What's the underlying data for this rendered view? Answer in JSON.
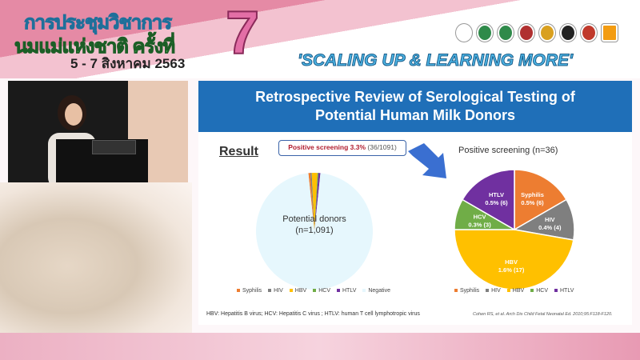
{
  "header": {
    "line1": "การประชุมวิชาการ",
    "line2": "นมแม่แห่งชาติ ครั้งที่",
    "number": "7",
    "dates": "5 - 7 สิงหาคม 2563",
    "slogan": "'SCALING UP & LEARNING MORE'"
  },
  "slide": {
    "title_line1": "Retrospective Review of Serological Testing of",
    "title_line2": "Potential Human Milk Donors",
    "result_label": "Result",
    "callout_bold": "Positive screening 3.3%",
    "callout_rest": " (36/1091)",
    "abbreviations": "HBV: Hepatitis B virus; HCV: Hepatitis C virus ; HTLV: human T cell lymphotropic virus",
    "citation": "Cohen RS, et al. Arch Dis Child Fetal Neonatal Ed. 2010;95:F118-F120."
  },
  "chart_data": [
    {
      "type": "pie",
      "center_label_line1": "Potential donors",
      "center_label_line2": "(n=1,091)",
      "categories": [
        "Syphilis",
        "HIV",
        "HBV",
        "HCV",
        "HTLV",
        "Negative"
      ],
      "values": [
        6,
        4,
        17,
        3,
        6,
        1055
      ],
      "colors": [
        "#ed7d31",
        "#7f7f7f",
        "#ffc000",
        "#70ad47",
        "#7030a0",
        "#e6f7fd"
      ],
      "legend": "bottom"
    },
    {
      "type": "pie",
      "title": "Positive screening (n=36)",
      "categories": [
        "Syphilis",
        "HIV",
        "HBV",
        "HCV",
        "HTLV"
      ],
      "values": [
        6,
        4,
        17,
        3,
        6
      ],
      "labels": [
        "0.5% (6)",
        "0.4% (4)",
        "1.6% (17)",
        "0.3% (3)",
        "0.5% (6)"
      ],
      "colors": [
        "#ed7d31",
        "#7f7f7f",
        "#ffc000",
        "#70ad47",
        "#7030a0"
      ],
      "legend": "bottom"
    }
  ]
}
